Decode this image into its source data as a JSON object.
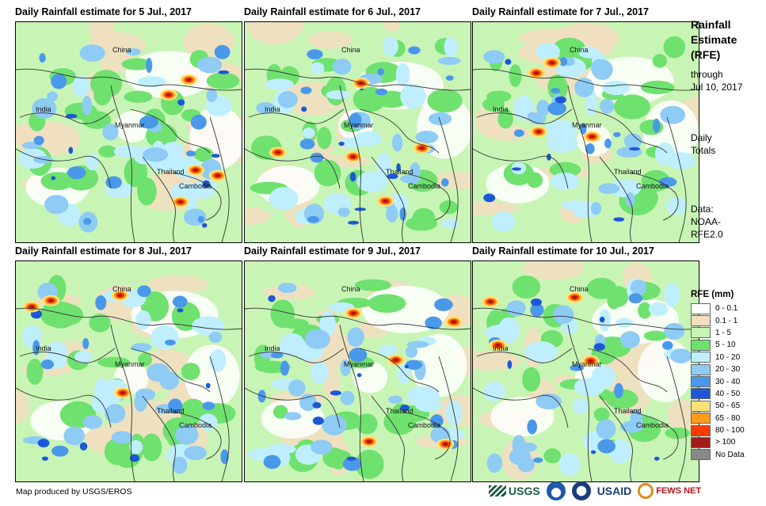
{
  "panels": [
    {
      "title": "Daily Rainfall estimate for 5 Jul., 2017",
      "labels": {
        "china": "China",
        "india": "India",
        "myanmar": "Myanmar",
        "thailand": "Thailand",
        "cambodia": "Cambodia"
      },
      "intensity": 1.0,
      "seed": 5
    },
    {
      "title": "Daily Rainfall estimate for 6 Jul., 2017",
      "labels": {
        "china": "China",
        "india": "India",
        "myanmar": "Myanmar",
        "thailand": "Thailand",
        "cambodia": "Cambodia"
      },
      "intensity": 1.0,
      "seed": 6
    },
    {
      "title": "Daily Rainfall estimate for 7 Jul., 2017",
      "labels": {
        "china": "China",
        "india": "India",
        "myanmar": "Myanmar",
        "thailand": "Thailand",
        "cambodia": "Cambodia"
      },
      "intensity": 0.8,
      "seed": 7
    },
    {
      "title": "Daily Rainfall estimate for 8 Jul., 2017",
      "labels": {
        "china": "China",
        "india": "India",
        "myanmar": "Myanmar",
        "thailand": "Thailand",
        "cambodia": "Cambodia"
      },
      "intensity": 0.85,
      "seed": 8
    },
    {
      "title": "Daily Rainfall estimate for 9 Jul., 2017",
      "labels": {
        "china": "China",
        "india": "India",
        "myanmar": "Myanmar",
        "thailand": "Thailand",
        "cambodia": "Cambodia"
      },
      "intensity": 0.9,
      "seed": 9
    },
    {
      "title": "Daily Rainfall estimate for 10 Jul., 2017",
      "labels": {
        "china": "China",
        "india": "India",
        "myanmar": "Myanmar",
        "thailand": "Thailand",
        "cambodia": "Cambodia"
      },
      "intensity": 0.7,
      "seed": 10
    }
  ],
  "side": {
    "title_line1": "Rainfall",
    "title_line2": "Estimate",
    "title_line3": "(RFE)",
    "through": "through",
    "date": "Jul 10, 2017",
    "daily": "Daily",
    "totals": "Totals",
    "data_label": "Data:",
    "source1": "NOAA-",
    "source2": "RFE2.0"
  },
  "legend": {
    "title": "RFE (mm)",
    "items": [
      {
        "label": "0 - 0.1",
        "color": "#ffffff"
      },
      {
        "label": "0.1 - 1",
        "color": "#f1dfc0"
      },
      {
        "label": "1 - 5",
        "color": "#c8f5b5"
      },
      {
        "label": "5 - 10",
        "color": "#6fe16f"
      },
      {
        "label": "10 - 20",
        "color": "#bfefff"
      },
      {
        "label": "20 - 30",
        "color": "#8ecbf5"
      },
      {
        "label": "30 - 40",
        "color": "#4a98ea"
      },
      {
        "label": "40 - 50",
        "color": "#1d57d8"
      },
      {
        "label": "50 - 65",
        "color": "#ffe27a"
      },
      {
        "label": "65 - 80",
        "color": "#ff9a1a"
      },
      {
        "label": "80 - 100",
        "color": "#ff3a00"
      },
      {
        "label": "> 100",
        "color": "#a41a1a"
      },
      {
        "label": "No Data",
        "color": "#888888"
      }
    ]
  },
  "credit": "Map produced by USGS/EROS",
  "logos": {
    "usgs": "USGS",
    "usaid": "USAID",
    "fews": "FEWS NET"
  },
  "icons": {
    "noaa": "noaa-seal-icon",
    "usaid_seal": "usaid-seal-icon",
    "usgs": "usgs-logo-icon",
    "fews": "fews-net-logo-icon"
  },
  "colors": {
    "border": "#333333",
    "coast": "#111111"
  }
}
